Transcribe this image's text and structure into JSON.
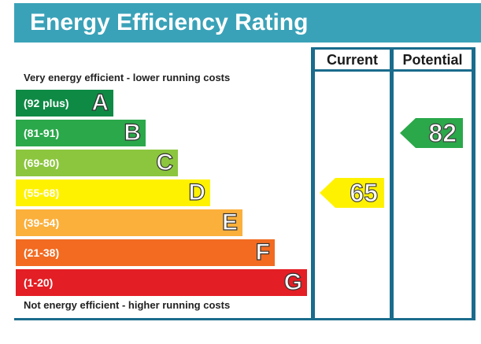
{
  "header": {
    "title": "Energy Efficiency Rating"
  },
  "columns": {
    "current": "Current",
    "potential": "Potential"
  },
  "captions": {
    "top": "Very energy efficient - lower running costs",
    "bottom": "Not energy efficient - higher running costs"
  },
  "chart_data": {
    "type": "bar",
    "title": "Energy Efficiency Rating",
    "bands": [
      {
        "range": "(92 plus)",
        "letter": "A",
        "color": "#0f8a45"
      },
      {
        "range": "(81-91)",
        "letter": "B",
        "color": "#2aa84a"
      },
      {
        "range": "(69-80)",
        "letter": "C",
        "color": "#8cc63e"
      },
      {
        "range": "(55-68)",
        "letter": "D",
        "color": "#fff200"
      },
      {
        "range": "(39-54)",
        "letter": "E",
        "color": "#fbb03b"
      },
      {
        "range": "(21-38)",
        "letter": "F",
        "color": "#f26b21"
      },
      {
        "range": "(1-20)",
        "letter": "G",
        "color": "#e31e24"
      }
    ],
    "current": {
      "value": "65",
      "band": "D",
      "color": "#fff200"
    },
    "potential": {
      "value": "82",
      "band": "B",
      "color": "#2aa84a"
    }
  }
}
